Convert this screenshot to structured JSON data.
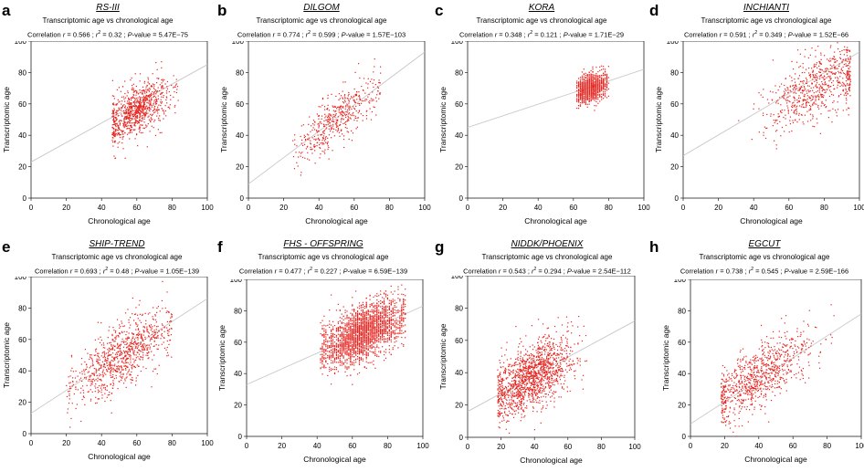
{
  "figure": {
    "description_text": ""
  },
  "chart_data": [
    {
      "panel": "a",
      "title": "RS-III",
      "type": "scatter",
      "subtitle": "Transcriptomic age vs chronological age",
      "r": "0.566",
      "r2": "0.32",
      "p_value": "5.47E−75",
      "xlabel": "Chronological age",
      "ylabel": "Transcriptomic age",
      "xlim": [
        0,
        100
      ],
      "ylim": [
        0,
        100
      ],
      "xticks": [
        0,
        20,
        40,
        60,
        80,
        100
      ],
      "yticks": [
        0,
        20,
        40,
        60,
        80,
        100
      ],
      "fit_line": [
        [
          0,
          23
        ],
        [
          100,
          85
        ]
      ],
      "points": {
        "n": 900,
        "x_range": [
          46,
          84
        ],
        "x_center": 60,
        "y_center": 56,
        "y_spread": 8,
        "slope": 0.55
      },
      "color": "#e8231e"
    },
    {
      "panel": "b",
      "title": "DILGOM",
      "type": "scatter",
      "subtitle": "Transcriptomic age vs chronological age",
      "r": "0.774",
      "r2": "0.599",
      "p_value": "1.57E−103",
      "xlabel": "Chronological age",
      "ylabel": "Transcriptomic age",
      "xlim": [
        0,
        100
      ],
      "ylim": [
        0,
        100
      ],
      "xticks": [
        0,
        20,
        40,
        60,
        80,
        100
      ],
      "yticks": [
        0,
        20,
        40,
        60,
        80,
        100
      ],
      "fit_line": [
        [
          0,
          9
        ],
        [
          100,
          93
        ]
      ],
      "points": {
        "n": 480,
        "x_range": [
          25,
          75
        ],
        "x_center": 50,
        "y_center": 50,
        "y_spread": 8,
        "slope": 0.85
      },
      "color": "#e8231e"
    },
    {
      "panel": "c",
      "title": "KORA",
      "type": "scatter",
      "subtitle": "Transcriptomic age vs chronological age",
      "r": "0.348",
      "r2": "0.121",
      "p_value": "1.71E−29",
      "xlabel": "Chronological age",
      "ylabel": "Transcriptomic age",
      "xlim": [
        0,
        100
      ],
      "ylim": [
        0,
        100
      ],
      "xticks": [
        0,
        20,
        40,
        60,
        80,
        100
      ],
      "yticks": [
        0,
        20,
        40,
        60,
        80,
        100
      ],
      "fit_line": [
        [
          0,
          45
        ],
        [
          100,
          82
        ]
      ],
      "points": {
        "n": 1100,
        "x_range": [
          62,
          80
        ],
        "x_center": 70,
        "y_center": 70,
        "y_spread": 4.5,
        "slope": 0.35,
        "grid": true
      },
      "color": "#e8231e"
    },
    {
      "panel": "d",
      "title": "INCHIANTI",
      "type": "scatter",
      "subtitle": "Transcriptomic age vs chronological age",
      "r": "0.591",
      "r2": "0.349",
      "p_value": "1.52E−66",
      "xlabel": "Chronological age",
      "ylabel": "Transcriptomic age",
      "xlim": [
        0,
        100
      ],
      "ylim": [
        0,
        100
      ],
      "xticks": [
        0,
        20,
        40,
        60,
        80,
        100
      ],
      "yticks": [
        0,
        20,
        40,
        60,
        80,
        100
      ],
      "fit_line": [
        [
          0,
          27
        ],
        [
          100,
          93
        ]
      ],
      "points": {
        "n": 700,
        "x_range": [
          30,
          95
        ],
        "x_center": 77,
        "y_center": 72,
        "y_spread": 11,
        "slope": 0.55
      },
      "color": "#e8231e"
    },
    {
      "panel": "e",
      "title": "SHIP-TREND",
      "type": "scatter",
      "subtitle": "Transcriptomic age vs chronological age",
      "r": "0.693",
      "r2": "0.48",
      "p_value": "1.05E−139",
      "xlabel": "Chronological age",
      "ylabel": "Transcriptomic age",
      "xlim": [
        0,
        100
      ],
      "ylim": [
        0,
        100
      ],
      "xticks": [
        0,
        20,
        40,
        60,
        80,
        100
      ],
      "yticks": [
        0,
        20,
        40,
        60,
        80,
        100
      ],
      "fit_line": [
        [
          0,
          13
        ],
        [
          100,
          86
        ]
      ],
      "points": {
        "n": 900,
        "x_range": [
          20,
          80
        ],
        "x_center": 52,
        "y_center": 50,
        "y_spread": 10,
        "slope": 0.7
      },
      "color": "#e8231e"
    },
    {
      "panel": "f",
      "title": "FHS - OFFSPRING",
      "type": "scatter",
      "subtitle": "Transcriptomic age vs chronological age",
      "r": "0.477",
      "r2": "0.227",
      "p_value": "6.59E−139",
      "xlabel": "Chronological age",
      "ylabel": "Transcriptomic age",
      "xlim": [
        0,
        100
      ],
      "ylim": [
        0,
        100
      ],
      "xticks": [
        0,
        20,
        40,
        60,
        80,
        100
      ],
      "yticks": [
        0,
        20,
        40,
        60,
        80,
        100
      ],
      "fit_line": [
        [
          0,
          33
        ],
        [
          100,
          83
        ]
      ],
      "points": {
        "n": 2400,
        "x_range": [
          42,
          90
        ],
        "x_center": 66,
        "y_center": 66,
        "y_spread": 8.5,
        "slope": 0.5,
        "grid": true
      },
      "color": "#e8231e"
    },
    {
      "panel": "g",
      "title": "NIDDK/PHOENIX",
      "type": "scatter",
      "subtitle": "Transcriptomic age vs chronological age",
      "r": "0.543",
      "r2": "0.294",
      "p_value": "2.54E−112",
      "xlabel": "Chronological age",
      "ylabel": "Transcriptomic age",
      "xlim": [
        0,
        100
      ],
      "ylim": [
        0,
        100
      ],
      "xticks": [
        0,
        20,
        40,
        60,
        80,
        100
      ],
      "yticks": [
        0,
        20,
        40,
        60,
        80,
        100
      ],
      "fit_line": [
        [
          0,
          16
        ],
        [
          100,
          72
        ]
      ],
      "points": {
        "n": 1400,
        "x_range": [
          18,
          72
        ],
        "x_center": 38,
        "y_center": 37,
        "y_spread": 10,
        "slope": 0.55
      },
      "color": "#e8231e"
    },
    {
      "panel": "h",
      "title": "EGCUT",
      "type": "scatter",
      "subtitle": "Transcriptomic age vs chronological age",
      "r": "0.738",
      "r2": "0.545",
      "p_value": "2.59E−166",
      "xlabel": "Chronological age",
      "ylabel": "Transcriptomic age",
      "xlim": [
        0,
        100
      ],
      "ylim": [
        0,
        100
      ],
      "xticks": [
        0,
        20,
        40,
        60,
        80,
        100
      ],
      "yticks": [
        0,
        20,
        40,
        60,
        80,
        100
      ],
      "fit_line": [
        [
          0,
          8
        ],
        [
          100,
          78
        ]
      ],
      "points": {
        "n": 850,
        "x_range": [
          18,
          85
        ],
        "x_center": 40,
        "y_center": 38,
        "y_spread": 10,
        "slope": 0.65
      },
      "color": "#e8231e"
    }
  ]
}
